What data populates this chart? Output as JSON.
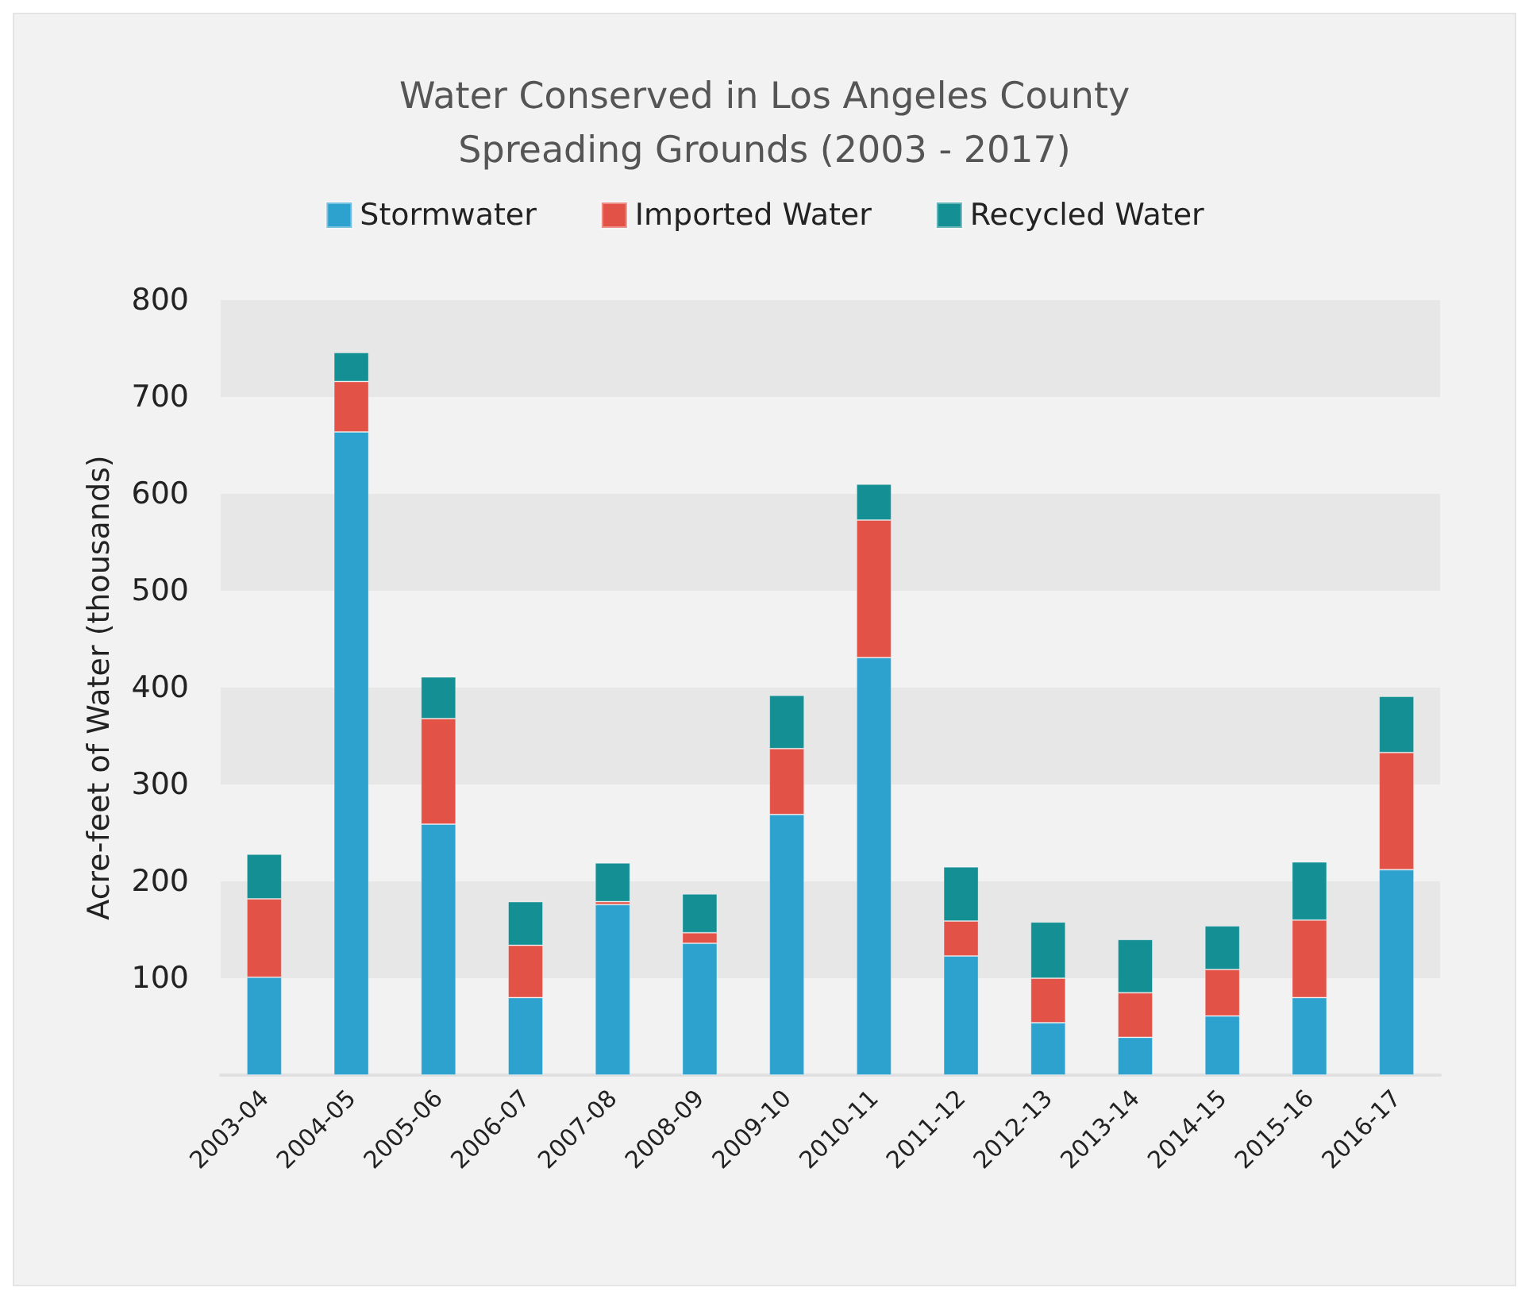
{
  "chart_data": {
    "type": "bar",
    "title": "Water Conserved in Los Angeles County\nSpreading Grounds (2003 - 2017)",
    "ylabel": "Acre-feet of Water (thousands)",
    "stacked": true,
    "legend": "top",
    "bands": [
      {
        "axis": "y",
        "from": 100,
        "to": 200,
        "color": "#e6e7e6"
      },
      {
        "axis": "y",
        "from": 300,
        "to": 400,
        "color": "#e6e7e6"
      },
      {
        "axis": "y",
        "from": 500,
        "to": 600,
        "color": "#e6e7e6"
      },
      {
        "axis": "y",
        "from": 700,
        "to": 800,
        "color": "#e6e7e6"
      }
    ],
    "categories": [
      "2003-04",
      "2004-05",
      "2005-06",
      "2006-07",
      "2007-08",
      "2008-09",
      "2009-10",
      "2010-11",
      "2011-12",
      "2012-13",
      "2013-14",
      "2014-15",
      "2015-16",
      "2016-17"
    ],
    "series": [
      {
        "name": "Stormwater",
        "color": "#2ea2cf",
        "values": [
          101,
          664,
          259,
          80,
          176,
          136,
          269,
          431,
          123,
          54,
          39,
          61,
          80,
          212
        ]
      },
      {
        "name": "Imported Water",
        "color": "#e35247",
        "values": [
          81,
          52,
          109,
          54,
          3,
          11,
          68,
          142,
          36,
          46,
          46,
          48,
          80,
          121
        ]
      },
      {
        "name": "Recycled Water",
        "color": "#148f94",
        "values": [
          46,
          30,
          43,
          45,
          40,
          40,
          55,
          37,
          56,
          58,
          55,
          45,
          60,
          58
        ]
      }
    ],
    "ylim": [
      0,
      800
    ],
    "yticks": [
      {
        "value": 0,
        "label": null
      },
      100,
      200,
      300,
      400,
      500,
      600,
      700,
      800
    ]
  }
}
